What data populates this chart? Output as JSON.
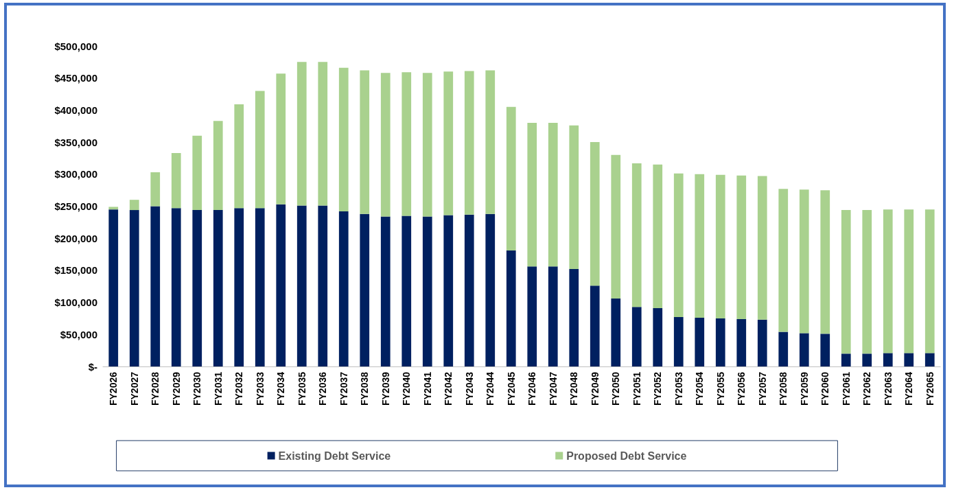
{
  "chart_data": {
    "type": "bar",
    "stacked": true,
    "categories": [
      "FY2026",
      "FY2027",
      "FY2028",
      "FY2029",
      "FY2030",
      "FY2031",
      "FY2032",
      "FY2033",
      "FY2034",
      "FY2035",
      "FY2036",
      "FY2037",
      "FY2038",
      "FY2039",
      "FY2040",
      "FY2041",
      "FY2042",
      "FY2043",
      "FY2044",
      "FY2045",
      "FY2046",
      "FY2047",
      "FY2048",
      "FY2049",
      "FY2050",
      "FY2051",
      "FY2052",
      "FY2053",
      "FY2054",
      "FY2055",
      "FY2056",
      "FY2057",
      "FY2058",
      "FY2059",
      "FY2060",
      "FY2061",
      "FY2062",
      "FY2063",
      "FY2064",
      "FY2065"
    ],
    "series": [
      {
        "name": "Existing Debt Service",
        "color": "#002060",
        "values": [
          245000,
          244000,
          250000,
          247000,
          244000,
          244000,
          247000,
          247000,
          253000,
          251000,
          251000,
          242000,
          238000,
          234000,
          235000,
          234000,
          236000,
          237000,
          238000,
          181000,
          156000,
          156000,
          152000,
          126000,
          106000,
          93000,
          91000,
          77000,
          76000,
          75000,
          74000,
          73000,
          54000,
          52000,
          51000,
          20000,
          20000,
          21000,
          21000,
          21000
        ]
      },
      {
        "name": "Proposed Debt Service",
        "color": "#a9d18e",
        "values": [
          4000,
          16000,
          53000,
          86000,
          116000,
          139000,
          162000,
          183000,
          204000,
          224000,
          224000,
          224000,
          224000,
          224000,
          224000,
          224000,
          224000,
          224000,
          224000,
          224000,
          224000,
          224000,
          224000,
          224000,
          224000,
          224000,
          224000,
          224000,
          224000,
          224000,
          224000,
          224000,
          223000,
          224000,
          224000,
          224000,
          224000,
          224000,
          224000,
          224000
        ]
      }
    ],
    "ylim": [
      0,
      500000
    ],
    "yticks": [
      {
        "value": 0,
        "label": "$-"
      },
      {
        "value": 50000,
        "label": "$50,000"
      },
      {
        "value": 100000,
        "label": "$100,000"
      },
      {
        "value": 150000,
        "label": "$150,000"
      },
      {
        "value": 200000,
        "label": "$200,000"
      },
      {
        "value": 250000,
        "label": "$250,000"
      },
      {
        "value": 300000,
        "label": "$300,000"
      },
      {
        "value": 350000,
        "label": "$350,000"
      },
      {
        "value": 400000,
        "label": "$400,000"
      },
      {
        "value": 450000,
        "label": "$450,000"
      },
      {
        "value": 500000,
        "label": "$500,000"
      }
    ],
    "grid": false,
    "legend": "bottom"
  }
}
